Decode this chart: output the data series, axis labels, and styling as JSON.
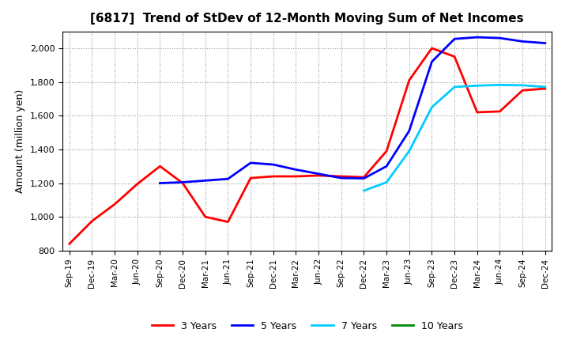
{
  "title": "[6817]  Trend of StDev of 12-Month Moving Sum of Net Incomes",
  "ylabel": "Amount (million yen)",
  "background_color": "#ffffff",
  "plot_background": "#ffffff",
  "ylim": [
    800,
    2100
  ],
  "yticks": [
    800,
    1000,
    1200,
    1400,
    1600,
    1800,
    2000
  ],
  "x_labels": [
    "Sep-19",
    "Dec-19",
    "Mar-20",
    "Jun-20",
    "Sep-20",
    "Dec-20",
    "Mar-21",
    "Jun-21",
    "Sep-21",
    "Dec-21",
    "Mar-22",
    "Jun-22",
    "Sep-22",
    "Dec-22",
    "Mar-23",
    "Jun-23",
    "Sep-23",
    "Dec-23",
    "Mar-24",
    "Jun-24",
    "Sep-24",
    "Dec-24"
  ],
  "series": {
    "3 Years": {
      "color": "#ff0000",
      "linewidth": 2.0,
      "data_x": [
        0,
        1,
        2,
        3,
        4,
        5,
        6,
        7,
        8,
        9,
        10,
        11,
        12,
        13,
        14,
        15,
        16,
        17,
        18,
        19,
        20,
        21
      ],
      "data_y": [
        840,
        975,
        1075,
        1195,
        1300,
        1200,
        1000,
        970,
        1230,
        1240,
        1240,
        1245,
        1240,
        1235,
        1390,
        1810,
        2000,
        1950,
        1620,
        1625,
        1750,
        1760
      ]
    },
    "5 Years": {
      "color": "#0000ff",
      "linewidth": 2.0,
      "data_x": [
        4,
        5,
        6,
        7,
        8,
        9,
        10,
        11,
        12,
        13,
        14,
        15,
        16,
        17,
        18,
        19,
        20,
        21
      ],
      "data_y": [
        1200,
        1205,
        1215,
        1225,
        1320,
        1310,
        1280,
        1255,
        1230,
        1228,
        1300,
        1510,
        1920,
        2055,
        2065,
        2060,
        2040,
        2030
      ]
    },
    "7 Years": {
      "color": "#00ccff",
      "linewidth": 2.0,
      "data_x": [
        13,
        14,
        15,
        16,
        17,
        18,
        19,
        20,
        21
      ],
      "data_y": [
        1155,
        1205,
        1390,
        1650,
        1770,
        1778,
        1782,
        1780,
        1770
      ]
    },
    "10 Years": {
      "color": "#008800",
      "linewidth": 2.0,
      "data_x": [],
      "data_y": []
    }
  },
  "legend_labels": [
    "3 Years",
    "5 Years",
    "7 Years",
    "10 Years"
  ]
}
